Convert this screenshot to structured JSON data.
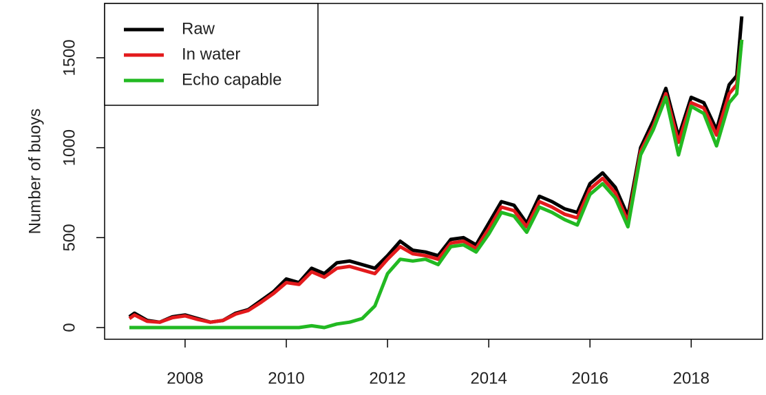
{
  "chart_data": {
    "type": "line",
    "y_label": "Number of buoys",
    "x": [
      2006.9,
      2007.0,
      2007.25,
      2007.5,
      2007.75,
      2008.0,
      2008.25,
      2008.5,
      2008.75,
      2009.0,
      2009.25,
      2009.5,
      2009.75,
      2010.0,
      2010.25,
      2010.5,
      2010.75,
      2011.0,
      2011.25,
      2011.5,
      2011.75,
      2012.0,
      2012.25,
      2012.5,
      2012.75,
      2013.0,
      2013.25,
      2013.5,
      2013.75,
      2014.0,
      2014.25,
      2014.5,
      2014.75,
      2015.0,
      2015.25,
      2015.5,
      2015.75,
      2016.0,
      2016.25,
      2016.5,
      2016.75,
      2017.0,
      2017.25,
      2017.5,
      2017.75,
      2018.0,
      2018.25,
      2018.5,
      2018.75,
      2018.9,
      2019.0
    ],
    "series": [
      {
        "name": "Raw",
        "color": "#000000",
        "values": [
          60,
          80,
          40,
          30,
          60,
          70,
          50,
          30,
          40,
          80,
          100,
          150,
          200,
          270,
          250,
          330,
          300,
          360,
          370,
          350,
          330,
          400,
          480,
          430,
          420,
          400,
          490,
          500,
          460,
          580,
          700,
          680,
          580,
          730,
          700,
          660,
          640,
          800,
          860,
          780,
          620,
          1000,
          1150,
          1330,
          1060,
          1280,
          1250,
          1100,
          1350,
          1400,
          1730
        ]
      },
      {
        "name": "In water",
        "color": "#e31a1c",
        "values": [
          50,
          70,
          35,
          30,
          55,
          65,
          45,
          30,
          40,
          75,
          95,
          140,
          190,
          250,
          240,
          310,
          280,
          330,
          340,
          320,
          300,
          380,
          450,
          410,
          400,
          380,
          470,
          480,
          440,
          550,
          670,
          650,
          560,
          700,
          670,
          630,
          610,
          770,
          830,
          750,
          590,
          980,
          1120,
          1300,
          1030,
          1250,
          1220,
          1070,
          1300,
          1350,
          1600
        ]
      },
      {
        "name": "Echo capable",
        "color": "#22b922",
        "values": [
          0,
          0,
          0,
          0,
          0,
          0,
          0,
          0,
          0,
          0,
          0,
          0,
          0,
          0,
          0,
          10,
          0,
          20,
          30,
          50,
          120,
          300,
          380,
          370,
          380,
          350,
          450,
          460,
          420,
          520,
          640,
          620,
          530,
          670,
          640,
          600,
          570,
          740,
          800,
          720,
          560,
          960,
          1100,
          1280,
          960,
          1230,
          1190,
          1010,
          1250,
          1300,
          1600
        ]
      }
    ],
    "xlim": [
      2006.41,
      2019.41
    ],
    "xticks": [
      2008,
      2010,
      2012,
      2014,
      2016,
      2018
    ],
    "ylim": [
      -65,
      1802
    ],
    "yticks": [
      0,
      500,
      1000,
      1500
    ],
    "legend": "topleft"
  }
}
